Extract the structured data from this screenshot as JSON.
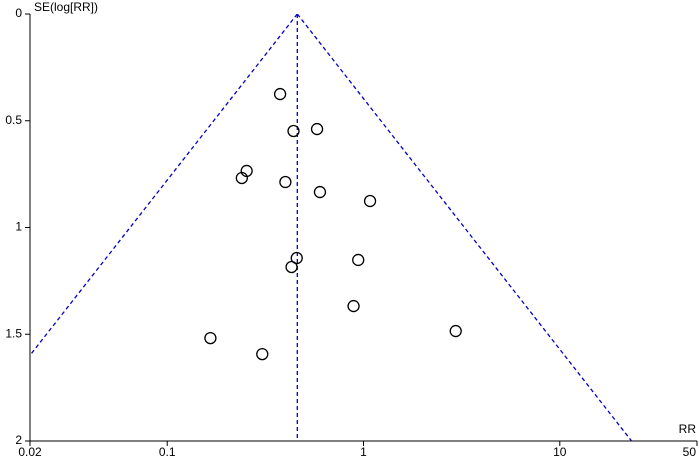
{
  "chart_data": {
    "type": "funnel",
    "y_label": "SE(log[RR])",
    "x_label": "RR",
    "x_log": true,
    "xlim": [
      0.02,
      50
    ],
    "xticks": [
      0.02,
      0.1,
      1,
      10,
      50
    ],
    "ylim": [
      0,
      2
    ],
    "yticks": [
      0,
      0.5,
      1,
      1.5,
      2
    ],
    "y_inverted": true,
    "line_color": "#0000cc",
    "marker_color": "#000000",
    "reference_line": 0.46,
    "funnel_lines": [
      {
        "x": [
          0.46,
          0.0091
        ],
        "y": [
          0,
          2
        ]
      },
      {
        "x": [
          0.46,
          23.2
        ],
        "y": [
          0,
          2
        ]
      }
    ],
    "x": [
      0.376,
      0.44,
      0.58,
      0.254,
      0.24,
      0.4,
      0.6,
      1.08,
      0.457,
      0.43,
      0.94,
      0.89,
      2.95,
      0.166,
      0.305
    ],
    "values": [
      0.375,
      0.548,
      0.539,
      0.735,
      0.768,
      0.787,
      0.834,
      0.876,
      1.143,
      1.185,
      1.152,
      1.368,
      1.485,
      1.518,
      1.593
    ]
  }
}
